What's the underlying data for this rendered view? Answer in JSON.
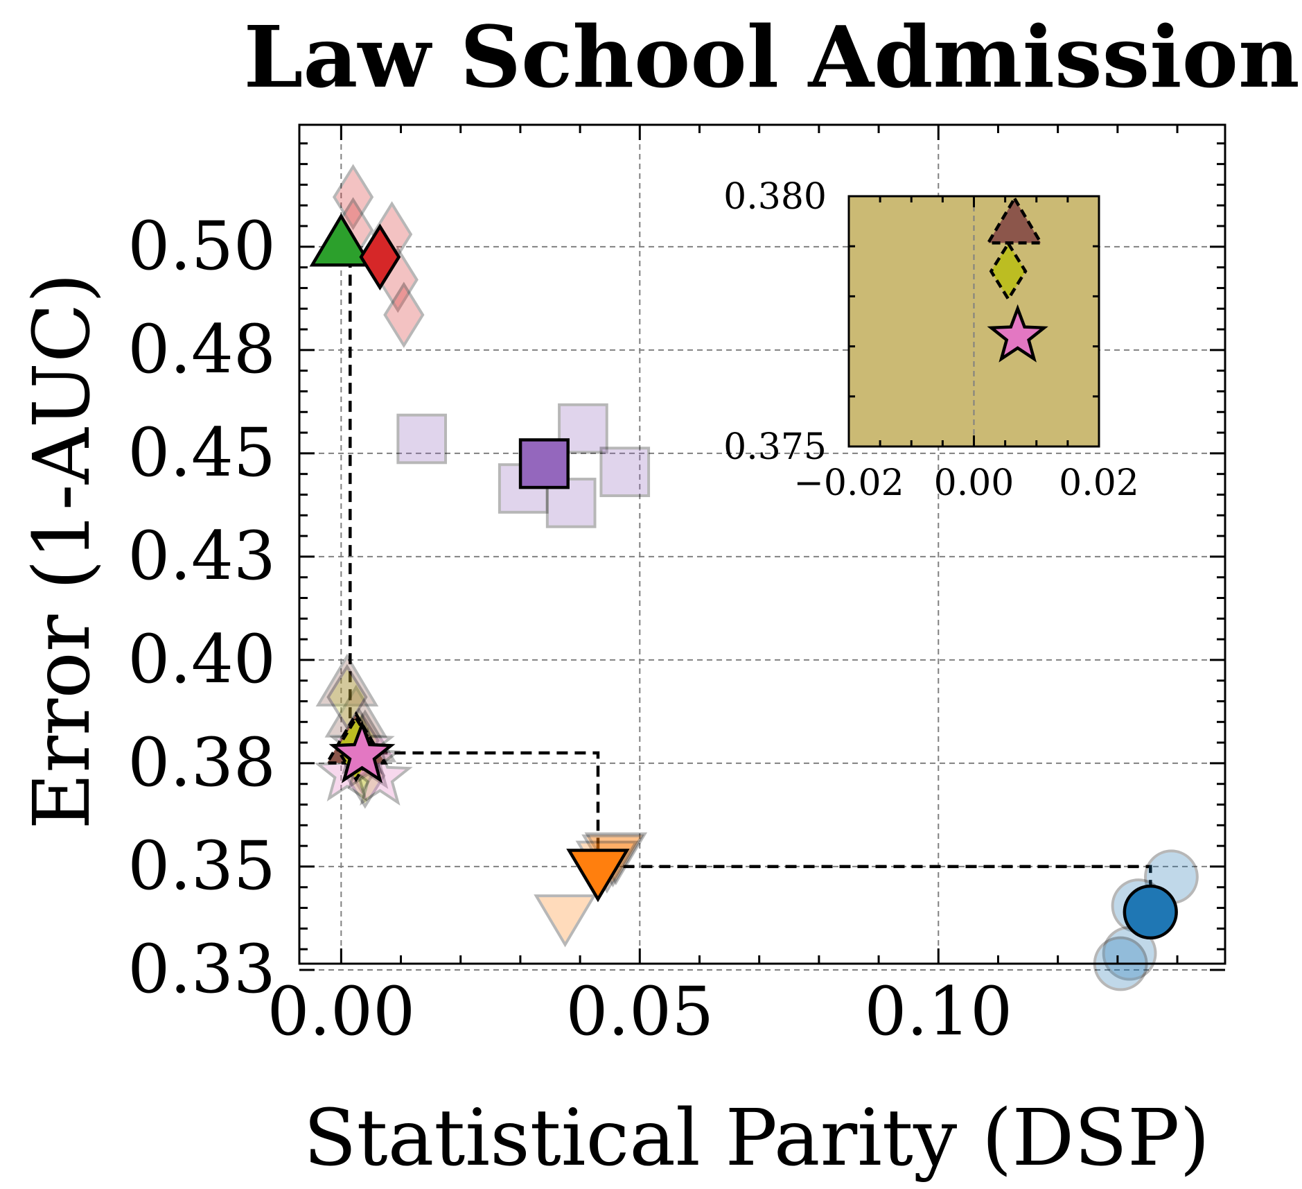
{
  "chart_data": {
    "type": "scatter",
    "title": "Law School Admissions",
    "xlabel": "Statistical Parity (DSP)",
    "ylabel": "Error (1-AUC)",
    "xlim": [
      -0.007,
      0.148
    ],
    "ylim": [
      0.3265,
      0.5295
    ],
    "xticks": [
      0.0,
      0.05,
      0.1
    ],
    "xtick_labels": [
      "0.00",
      "0.05",
      "0.10"
    ],
    "yticks": [
      0.325,
      0.35,
      0.375,
      0.4,
      0.425,
      0.45,
      0.475,
      0.5
    ],
    "ytick_labels": [
      "0.33",
      "0.35",
      "0.38",
      "0.40",
      "0.43",
      "0.45",
      "0.48",
      "0.50"
    ],
    "grid": true,
    "series": [
      {
        "marker": "circle",
        "color": "#1f77b4",
        "mean": {
          "x": 0.1355,
          "y": 0.339
        },
        "runs": [
          {
            "x": 0.139,
            "y": 0.3475
          },
          {
            "x": 0.1335,
            "y": 0.3405
          },
          {
            "x": 0.132,
            "y": 0.329
          },
          {
            "x": 0.1305,
            "y": 0.3265
          }
        ]
      },
      {
        "marker": "triangle_down",
        "color": "#ff7f0e",
        "mean": {
          "x": 0.043,
          "y": 0.3495
        },
        "runs": [
          {
            "x": 0.046,
            "y": 0.3535
          },
          {
            "x": 0.0455,
            "y": 0.353
          },
          {
            "x": 0.0375,
            "y": 0.3385
          },
          {
            "x": 0.0445,
            "y": 0.3515
          }
        ]
      },
      {
        "marker": "triangle_up",
        "color": "#2ca02c",
        "mean": {
          "x": 0.0,
          "y": 0.5
        }
      },
      {
        "marker": "diamond",
        "color": "#d62728",
        "mean": {
          "x": 0.0065,
          "y": 0.4975
        },
        "runs": [
          {
            "x": 0.002,
            "y": 0.512
          },
          {
            "x": 0.002,
            "y": 0.504
          },
          {
            "x": 0.0085,
            "y": 0.503
          },
          {
            "x": 0.0095,
            "y": 0.492
          },
          {
            "x": 0.0105,
            "y": 0.4835
          }
        ]
      },
      {
        "marker": "square",
        "color": "#9467bd",
        "mean": {
          "x": 0.034,
          "y": 0.4475
        },
        "runs": [
          {
            "x": 0.0135,
            "y": 0.4535
          },
          {
            "x": 0.0405,
            "y": 0.456
          },
          {
            "x": 0.0475,
            "y": 0.4455
          },
          {
            "x": 0.0305,
            "y": 0.4415
          },
          {
            "x": 0.0385,
            "y": 0.438
          }
        ]
      },
      {
        "marker": "triangle_up",
        "color": "#8c564b",
        "edge": "dashed",
        "mean": {
          "x": 0.0025,
          "y": 0.3795
        },
        "runs": [
          {
            "x": 0.001,
            "y": 0.3935
          },
          {
            "x": 0.0025,
            "y": 0.386
          },
          {
            "x": 0.004,
            "y": 0.38
          }
        ]
      },
      {
        "marker": "diamond",
        "color": "#bcbd22",
        "edge": "dashed",
        "mean": {
          "x": 0.0025,
          "y": 0.3785
        },
        "runs": [
          {
            "x": 0.001,
            "y": 0.391
          },
          {
            "x": 0.003,
            "y": 0.3805
          },
          {
            "x": 0.0035,
            "y": 0.3755
          },
          {
            "x": 0.004,
            "y": 0.372
          }
        ]
      },
      {
        "marker": "star",
        "color": "#e377c2",
        "mean": {
          "x": 0.0035,
          "y": 0.377
        },
        "runs": [
          {
            "x": 0.001,
            "y": 0.3725
          },
          {
            "x": 0.0045,
            "y": 0.3755
          },
          {
            "x": 0.0065,
            "y": 0.3715
          },
          {
            "x": 0.0035,
            "y": 0.379
          }
        ]
      }
    ],
    "pareto_front": [
      {
        "x": 0.0015,
        "y": 0.4976
      },
      {
        "x": 0.0015,
        "y": 0.3775
      },
      {
        "x": 0.043,
        "y": 0.3775
      },
      {
        "x": 0.043,
        "y": 0.35
      },
      {
        "x": 0.1355,
        "y": 0.35
      },
      {
        "x": 0.1355,
        "y": 0.339
      }
    ],
    "inset": {
      "background": "#cbba74",
      "xlim": [
        -0.02,
        0.02
      ],
      "ylim": [
        0.375,
        0.38
      ],
      "xticks": [
        -0.02,
        0.0,
        0.02
      ],
      "xtick_labels": [
        "−0.02",
        "0.00",
        "0.02"
      ],
      "yticks": [
        0.375,
        0.38
      ],
      "ytick_labels": [
        "0.375",
        "0.380"
      ],
      "points": [
        {
          "marker": "triangle_up",
          "color": "#8c564b",
          "edge": "dashed",
          "x": 0.0065,
          "y": 0.3794
        },
        {
          "marker": "diamond",
          "color": "#bcbd22",
          "edge": "dashed",
          "x": 0.0055,
          "y": 0.3785
        },
        {
          "marker": "star",
          "color": "#e377c2",
          "edge": "solid",
          "x": 0.007,
          "y": 0.3772
        }
      ]
    }
  }
}
